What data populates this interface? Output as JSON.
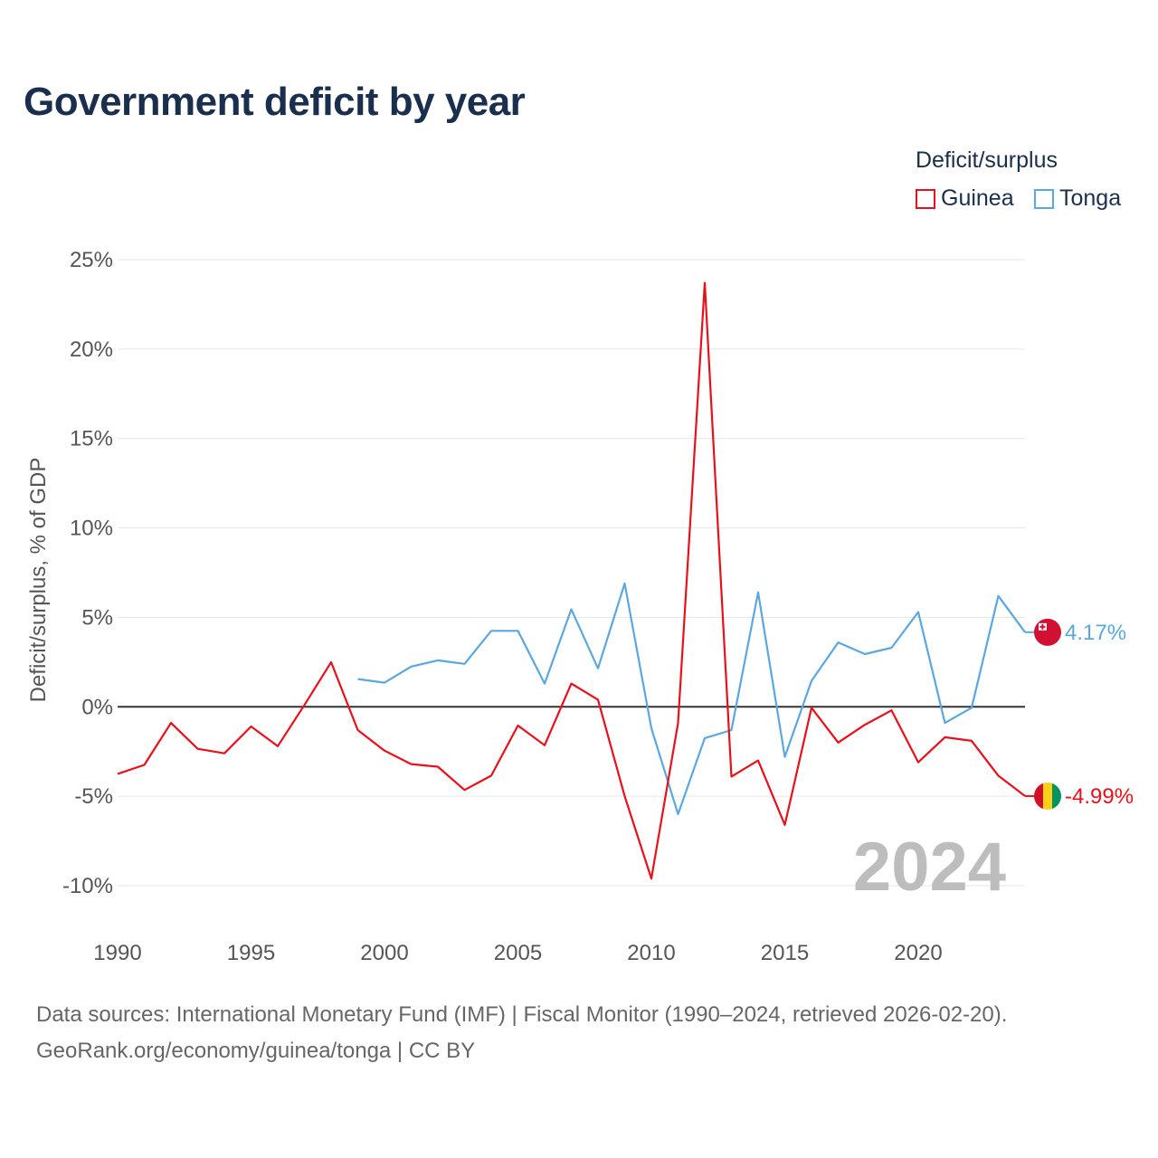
{
  "title": "Government deficit by year",
  "legend": {
    "title": "Deficit/surplus",
    "items": [
      {
        "name": "Guinea",
        "color": "#e8101a"
      },
      {
        "name": "Tonga",
        "color": "#5ba7e0"
      }
    ]
  },
  "chart_data": {
    "type": "line",
    "title": "Government deficit by year",
    "xlabel": "",
    "ylabel": "Deficit/surplus, % of GDP",
    "xlim": [
      1990,
      2024
    ],
    "ylim": [
      -10,
      25
    ],
    "x_ticks": [
      1990,
      1995,
      2000,
      2005,
      2010,
      2015,
      2020
    ],
    "x_tick_labels": [
      "1990",
      "1995",
      "2000",
      "2005",
      "2010",
      "2015",
      "2020"
    ],
    "y_ticks": [
      25,
      20,
      15,
      10,
      5,
      0,
      -5,
      -10
    ],
    "y_tick_labels": [
      "25%",
      "20%",
      "15%",
      "10%",
      "5%",
      "0%",
      "-5%",
      "-10%"
    ],
    "watermark_year": "2024",
    "series": [
      {
        "name": "Guinea",
        "color": "#e8101a",
        "end_label": "-4.99%",
        "x": [
          1990,
          1991,
          1992,
          1993,
          1994,
          1995,
          1996,
          1997,
          1998,
          1999,
          2000,
          2001,
          2002,
          2003,
          2004,
          2005,
          2006,
          2007,
          2008,
          2009,
          2010,
          2011,
          2012,
          2013,
          2014,
          2015,
          2016,
          2017,
          2018,
          2019,
          2020,
          2021,
          2022,
          2023,
          2024
        ],
        "values": [
          -3.75,
          -3.25,
          -0.9,
          -2.35,
          -2.6,
          -1.1,
          -2.2,
          0.1,
          2.5,
          -1.3,
          -2.45,
          -3.2,
          -3.35,
          -4.65,
          -3.85,
          -1.05,
          -2.15,
          1.3,
          0.4,
          -5.0,
          -9.6,
          -0.9,
          23.7,
          -3.9,
          -3.0,
          -6.6,
          -0.05,
          -2.0,
          -1.0,
          -0.2,
          -3.1,
          -1.7,
          -1.9,
          -3.85,
          -4.99
        ]
      },
      {
        "name": "Tonga",
        "color": "#5ba7e0",
        "end_label": "4.17%",
        "x": [
          1999,
          2000,
          2001,
          2002,
          2003,
          2004,
          2005,
          2006,
          2007,
          2008,
          2009,
          2010,
          2011,
          2012,
          2013,
          2014,
          2015,
          2016,
          2017,
          2018,
          2019,
          2020,
          2021,
          2022,
          2023,
          2024
        ],
        "values": [
          1.55,
          1.35,
          2.25,
          2.6,
          2.4,
          4.25,
          4.25,
          1.3,
          5.45,
          2.15,
          6.9,
          -1.2,
          -6.0,
          -1.75,
          -1.3,
          6.4,
          -2.8,
          1.45,
          3.6,
          2.95,
          3.3,
          5.3,
          -0.9,
          -0.05,
          6.2,
          4.17
        ]
      }
    ]
  },
  "footer": {
    "line1": "Data sources: International Monetary Fund (IMF) | Fiscal Monitor (1990–2024, retrieved 2026-02-20).",
    "line2": "GeoRank.org/economy/guinea/tonga | CC BY"
  }
}
